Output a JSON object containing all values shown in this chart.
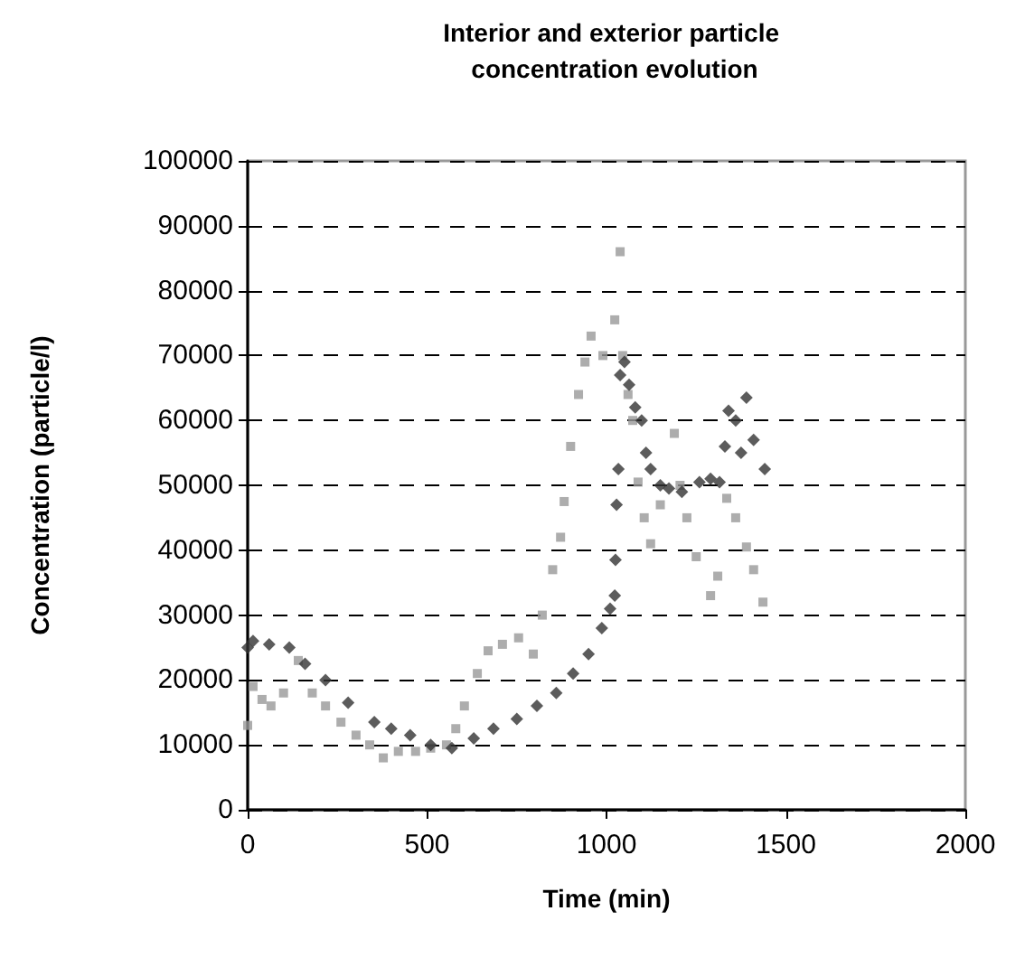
{
  "chart_data": {
    "type": "scatter",
    "title": "Interior and exterior particle concentration evolution",
    "xlabel": "Time (min)",
    "ylabel": "Concentration (particle/l)",
    "xlim": [
      0,
      2000
    ],
    "xticks": [
      0,
      500,
      1000,
      1500,
      2000
    ],
    "ylim": [
      0,
      100000
    ],
    "yticks": [
      0,
      10000,
      20000,
      30000,
      40000,
      50000,
      60000,
      70000,
      80000,
      90000,
      100000
    ],
    "grid": "y",
    "series": [
      {
        "color": "#999999",
        "marker": "square",
        "x": [
          0,
          15,
          40,
          65,
          100,
          141,
          180,
          217,
          260,
          302,
          340,
          378,
          420,
          468,
          510,
          554,
          580,
          604,
          640,
          670,
          710,
          755,
          796,
          821,
          850,
          872,
          882,
          900,
          922,
          940,
          957,
          990,
          1023,
          1038,
          1045,
          1060,
          1073,
          1088,
          1105,
          1123,
          1150,
          1189,
          1205,
          1224,
          1250,
          1290,
          1310,
          1335,
          1360,
          1390,
          1410,
          1436
        ],
        "values": [
          13000,
          19000,
          17000,
          16000,
          18000,
          23000,
          18000,
          16000,
          13500,
          11500,
          10000,
          8000,
          9000,
          9000,
          9500,
          10000,
          12500,
          16000,
          21000,
          24500,
          25500,
          26500,
          24000,
          30000,
          37000,
          42000,
          47500,
          56000,
          64000,
          69000,
          73000,
          70000,
          75500,
          86000,
          70000,
          64000,
          60000,
          50500,
          45000,
          41000,
          47000,
          58000,
          50000,
          45000,
          39000,
          33000,
          36000,
          48000,
          45000,
          40500,
          37000,
          32000
        ]
      },
      {
        "color": "#333333",
        "marker": "diamond",
        "x": [
          0,
          15,
          60,
          116,
          160,
          217,
          280,
          353,
          400,
          453,
          510,
          569,
          630,
          685,
          750,
          806,
          860,
          907,
          950,
          987,
          1010,
          1023,
          1025,
          1028,
          1033,
          1038,
          1050,
          1063,
          1080,
          1098,
          1110,
          1123,
          1150,
          1174,
          1210,
          1259,
          1290,
          1315,
          1330,
          1340,
          1360,
          1375,
          1390,
          1410,
          1441
        ],
        "values": [
          25000,
          26000,
          25500,
          25000,
          22500,
          20000,
          16500,
          13500,
          12500,
          11500,
          10000,
          9500,
          11000,
          12500,
          14000,
          16000,
          18000,
          21000,
          24000,
          28000,
          31000,
          33000,
          38500,
          47000,
          52500,
          67000,
          69000,
          65500,
          62000,
          60000,
          55000,
          52500,
          50000,
          49500,
          49000,
          50500,
          51000,
          50500,
          56000,
          61500,
          60000,
          55000,
          63500,
          57000,
          52500
        ]
      }
    ]
  }
}
